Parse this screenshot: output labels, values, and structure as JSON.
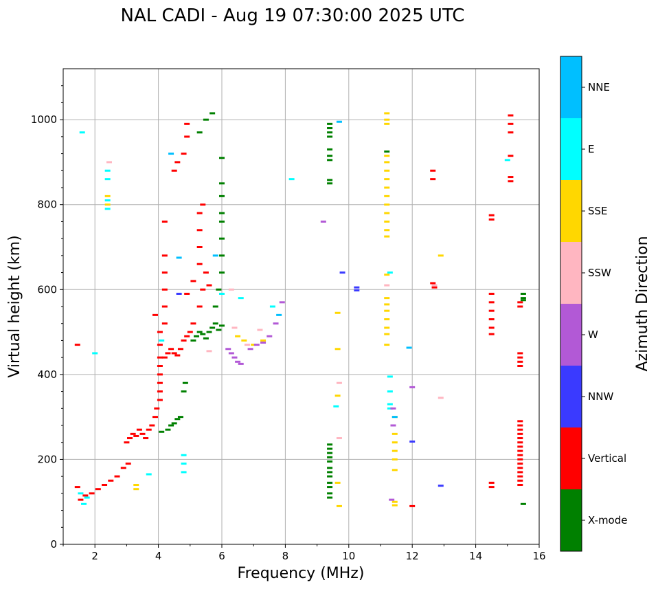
{
  "chart_data": {
    "type": "scatter",
    "title": "NAL CADI - Aug 19 07:30:00 2025 UTC",
    "xlabel": "Frequency (MHz)",
    "ylabel": "Virtual height (km)",
    "xlim": [
      1,
      16
    ],
    "ylim": [
      0,
      1120
    ],
    "xticks": [
      "2",
      "4",
      "6",
      "8",
      "10",
      "12",
      "14",
      "16"
    ],
    "yticks": [
      "0",
      "200",
      "400",
      "600",
      "800",
      "1000"
    ],
    "grid": true,
    "colorbar": {
      "title": "Azimuth Direction",
      "categories": [
        {
          "name": "X-mode",
          "color": "#008000"
        },
        {
          "name": "Vertical",
          "color": "#ff0000"
        },
        {
          "name": "NNW",
          "color": "#3a3aff"
        },
        {
          "name": "W",
          "color": "#b259d6"
        },
        {
          "name": "SSW",
          "color": "#ffb6c1"
        },
        {
          "name": "SSE",
          "color": "#ffd700"
        },
        {
          "name": "E",
          "color": "#00ffff"
        },
        {
          "name": "NNE",
          "color": "#00bfff"
        }
      ]
    },
    "series": [
      {
        "name": "Vertical",
        "points": [
          [
            1.45,
            470
          ],
          [
            1.45,
            135
          ],
          [
            1.55,
            105
          ],
          [
            1.7,
            115
          ],
          [
            1.9,
            120
          ],
          [
            2.1,
            130
          ],
          [
            2.3,
            140
          ],
          [
            2.5,
            150
          ],
          [
            2.7,
            160
          ],
          [
            2.9,
            180
          ],
          [
            3.05,
            190
          ],
          [
            3.0,
            240
          ],
          [
            3.1,
            250
          ],
          [
            3.2,
            260
          ],
          [
            3.3,
            255
          ],
          [
            3.4,
            270
          ],
          [
            3.5,
            260
          ],
          [
            3.6,
            250
          ],
          [
            3.7,
            270
          ],
          [
            3.8,
            280
          ],
          [
            3.9,
            300
          ],
          [
            3.95,
            320
          ],
          [
            4.05,
            340
          ],
          [
            4.05,
            360
          ],
          [
            4.05,
            380
          ],
          [
            4.05,
            400
          ],
          [
            4.05,
            420
          ],
          [
            4.05,
            440
          ],
          [
            4.05,
            470
          ],
          [
            4.05,
            500
          ],
          [
            4.2,
            440
          ],
          [
            4.3,
            450
          ],
          [
            4.4,
            460
          ],
          [
            4.5,
            450
          ],
          [
            4.6,
            445
          ],
          [
            4.7,
            460
          ],
          [
            4.8,
            480
          ],
          [
            4.9,
            490
          ],
          [
            5.0,
            500
          ],
          [
            5.1,
            520
          ],
          [
            4.2,
            520
          ],
          [
            4.2,
            560
          ],
          [
            4.2,
            600
          ],
          [
            4.2,
            640
          ],
          [
            4.2,
            680
          ],
          [
            4.2,
            760
          ],
          [
            3.9,
            540
          ],
          [
            4.9,
            590
          ],
          [
            5.1,
            620
          ],
          [
            5.3,
            560
          ],
          [
            5.4,
            600
          ],
          [
            4.5,
            880
          ],
          [
            4.6,
            900
          ],
          [
            4.8,
            920
          ],
          [
            4.9,
            960
          ],
          [
            4.9,
            990
          ],
          [
            5.3,
            660
          ],
          [
            5.3,
            700
          ],
          [
            5.3,
            740
          ],
          [
            5.3,
            780
          ],
          [
            5.4,
            800
          ],
          [
            5.5,
            640
          ],
          [
            5.6,
            610
          ],
          [
            12.65,
            880
          ],
          [
            12.65,
            860
          ],
          [
            12.7,
            605
          ],
          [
            12.65,
            615
          ],
          [
            14.5,
            775
          ],
          [
            14.5,
            765
          ],
          [
            14.5,
            590
          ],
          [
            14.5,
            570
          ],
          [
            14.5,
            550
          ],
          [
            14.5,
            530
          ],
          [
            14.5,
            510
          ],
          [
            14.5,
            495
          ],
          [
            14.5,
            145
          ],
          [
            14.5,
            135
          ],
          [
            15.1,
            1010
          ],
          [
            15.1,
            990
          ],
          [
            15.1,
            970
          ],
          [
            15.1,
            915
          ],
          [
            15.1,
            865
          ],
          [
            15.1,
            855
          ],
          [
            15.4,
            570
          ],
          [
            15.4,
            560
          ],
          [
            15.4,
            450
          ],
          [
            15.4,
            440
          ],
          [
            15.4,
            430
          ],
          [
            15.4,
            420
          ],
          [
            15.4,
            290
          ],
          [
            15.4,
            280
          ],
          [
            15.4,
            270
          ],
          [
            15.4,
            260
          ],
          [
            15.4,
            250
          ],
          [
            15.4,
            240
          ],
          [
            15.4,
            230
          ],
          [
            15.4,
            220
          ],
          [
            15.4,
            210
          ],
          [
            15.4,
            200
          ],
          [
            15.4,
            190
          ],
          [
            15.4,
            180
          ],
          [
            15.4,
            170
          ],
          [
            15.4,
            160
          ],
          [
            15.4,
            150
          ],
          [
            15.4,
            140
          ],
          [
            12.0,
            90
          ]
        ]
      },
      {
        "name": "X-mode",
        "points": [
          [
            4.1,
            265
          ],
          [
            4.3,
            270
          ],
          [
            4.4,
            280
          ],
          [
            4.5,
            285
          ],
          [
            4.6,
            295
          ],
          [
            4.7,
            300
          ],
          [
            4.8,
            360
          ],
          [
            4.85,
            380
          ],
          [
            5.1,
            480
          ],
          [
            5.2,
            490
          ],
          [
            5.3,
            500
          ],
          [
            5.4,
            495
          ],
          [
            5.5,
            485
          ],
          [
            5.6,
            500
          ],
          [
            5.7,
            510
          ],
          [
            5.8,
            520
          ],
          [
            5.9,
            505
          ],
          [
            6.0,
            515
          ],
          [
            5.8,
            560
          ],
          [
            5.9,
            600
          ],
          [
            6.0,
            640
          ],
          [
            6.0,
            680
          ],
          [
            6.0,
            720
          ],
          [
            6.0,
            760
          ],
          [
            6.0,
            780
          ],
          [
            6.0,
            820
          ],
          [
            6.0,
            850
          ],
          [
            6.0,
            910
          ],
          [
            5.7,
            1015
          ],
          [
            5.5,
            1000
          ],
          [
            5.3,
            970
          ],
          [
            9.4,
            990
          ],
          [
            9.4,
            980
          ],
          [
            9.4,
            970
          ],
          [
            9.4,
            960
          ],
          [
            9.4,
            930
          ],
          [
            9.4,
            915
          ],
          [
            9.4,
            905
          ],
          [
            9.4,
            858
          ],
          [
            9.4,
            850
          ],
          [
            9.4,
            235
          ],
          [
            9.4,
            225
          ],
          [
            9.4,
            215
          ],
          [
            9.4,
            205
          ],
          [
            9.4,
            195
          ],
          [
            9.4,
            180
          ],
          [
            9.4,
            170
          ],
          [
            9.4,
            160
          ],
          [
            9.4,
            145
          ],
          [
            9.4,
            135
          ],
          [
            9.4,
            120
          ],
          [
            9.4,
            110
          ],
          [
            11.2,
            925
          ],
          [
            15.5,
            590
          ],
          [
            15.5,
            580
          ],
          [
            15.5,
            575
          ],
          [
            15.5,
            95
          ]
        ]
      },
      {
        "name": "SSE",
        "points": [
          [
            11.2,
            1015
          ],
          [
            11.2,
            1000
          ],
          [
            11.2,
            990
          ],
          [
            11.2,
            915
          ],
          [
            11.2,
            900
          ],
          [
            11.2,
            880
          ],
          [
            11.2,
            860
          ],
          [
            11.2,
            840
          ],
          [
            11.2,
            820
          ],
          [
            11.2,
            800
          ],
          [
            11.2,
            780
          ],
          [
            11.2,
            760
          ],
          [
            11.2,
            740
          ],
          [
            11.2,
            725
          ],
          [
            11.2,
            635
          ],
          [
            11.2,
            580
          ],
          [
            11.2,
            565
          ],
          [
            11.2,
            550
          ],
          [
            11.2,
            530
          ],
          [
            11.2,
            510
          ],
          [
            11.2,
            495
          ],
          [
            11.2,
            470
          ],
          [
            11.45,
            300
          ],
          [
            11.45,
            260
          ],
          [
            11.45,
            240
          ],
          [
            11.45,
            220
          ],
          [
            11.45,
            200
          ],
          [
            11.45,
            175
          ],
          [
            11.45,
            100
          ],
          [
            11.45,
            92
          ],
          [
            3.3,
            140
          ],
          [
            3.3,
            130
          ],
          [
            6.5,
            490
          ],
          [
            6.7,
            480
          ],
          [
            7.0,
            470
          ],
          [
            7.3,
            480
          ],
          [
            12.9,
            680
          ],
          [
            9.65,
            545
          ],
          [
            9.65,
            460
          ],
          [
            9.65,
            350
          ],
          [
            9.65,
            145
          ],
          [
            9.7,
            90
          ],
          [
            2.4,
            800
          ],
          [
            2.4,
            820
          ]
        ]
      },
      {
        "name": "E",
        "points": [
          [
            1.55,
            120
          ],
          [
            1.65,
            95
          ],
          [
            1.75,
            110
          ],
          [
            2.4,
            790
          ],
          [
            2.4,
            810
          ],
          [
            2.4,
            860
          ],
          [
            2.4,
            880
          ],
          [
            3.7,
            165
          ],
          [
            4.8,
            170
          ],
          [
            4.8,
            190
          ],
          [
            4.8,
            210
          ],
          [
            8.2,
            860
          ],
          [
            9.6,
            325
          ],
          [
            11.3,
            395
          ],
          [
            11.3,
            640
          ],
          [
            11.3,
            360
          ],
          [
            11.3,
            330
          ],
          [
            11.3,
            320
          ],
          [
            15.0,
            905
          ],
          [
            6.0,
            590
          ],
          [
            6.6,
            580
          ],
          [
            7.6,
            560
          ],
          [
            2.0,
            450
          ],
          [
            4.1,
            480
          ],
          [
            1.6,
            970
          ]
        ]
      },
      {
        "name": "W",
        "points": [
          [
            6.2,
            460
          ],
          [
            6.3,
            450
          ],
          [
            6.4,
            440
          ],
          [
            6.5,
            430
          ],
          [
            6.6,
            425
          ],
          [
            6.9,
            460
          ],
          [
            7.1,
            470
          ],
          [
            7.3,
            475
          ],
          [
            7.5,
            490
          ],
          [
            7.7,
            520
          ],
          [
            7.9,
            570
          ],
          [
            9.2,
            760
          ],
          [
            12.0,
            370
          ],
          [
            11.4,
            280
          ],
          [
            11.35,
            105
          ],
          [
            11.4,
            320
          ]
        ]
      },
      {
        "name": "SSW",
        "points": [
          [
            6.3,
            600
          ],
          [
            6.4,
            510
          ],
          [
            6.8,
            470
          ],
          [
            7.2,
            505
          ],
          [
            12.9,
            345
          ],
          [
            11.2,
            610
          ],
          [
            9.7,
            380
          ],
          [
            9.7,
            250
          ],
          [
            12.7,
            610
          ],
          [
            2.45,
            900
          ],
          [
            5.6,
            455
          ]
        ]
      },
      {
        "name": "NNW",
        "points": [
          [
            10.25,
            605
          ],
          [
            10.25,
            598
          ],
          [
            12.9,
            138
          ],
          [
            12.0,
            242
          ],
          [
            9.8,
            640
          ],
          [
            4.65,
            590
          ]
        ]
      },
      {
        "name": "NNE",
        "points": [
          [
            4.4,
            920
          ],
          [
            4.65,
            675
          ],
          [
            5.8,
            680
          ],
          [
            11.9,
            463
          ],
          [
            11.45,
            300
          ],
          [
            9.7,
            995
          ],
          [
            7.8,
            540
          ]
        ]
      }
    ]
  }
}
